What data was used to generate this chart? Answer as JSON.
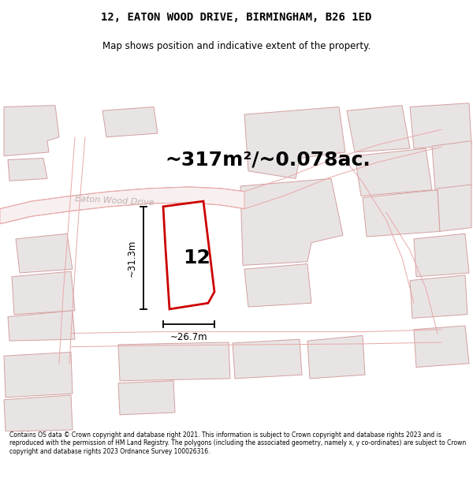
{
  "title": "12, EATON WOOD DRIVE, BIRMINGHAM, B26 1ED",
  "subtitle": "Map shows position and indicative extent of the property.",
  "area_text": "~317m²/~0.078ac.",
  "label_number": "12",
  "dim_width": "~26.7m",
  "dim_height": "~31.3m",
  "road_label": "Eaton Wood Drive",
  "footer": "Contains OS data © Crown copyright and database right 2021. This information is subject to Crown copyright and database rights 2023 and is reproduced with the permission of HM Land Registry. The polygons (including the associated geometry, namely x, y co-ordinates) are subject to Crown copyright and database rights 2023 Ordnance Survey 100026316.",
  "map_bg": "#ffffff",
  "prop_fill": "#ffffff",
  "prop_edge": "#cc0000",
  "plot_fill": "#e8e4e4",
  "plot_edge": "#d4a0a0",
  "road_fill": "#ffffff",
  "road_edge": "#e8a8a8",
  "title_font": 10,
  "subtitle_font": 8.5,
  "area_font": 18,
  "number_font": 18
}
